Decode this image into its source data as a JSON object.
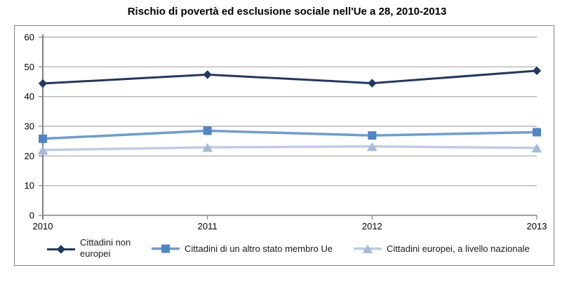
{
  "chart_data": {
    "type": "line",
    "title": "Rischio di povertà ed esclusione sociale nell'Ue a 28, 2010-2013",
    "x_labels": [
      "2010",
      "2011",
      "2012",
      "2013"
    ],
    "ylim": [
      0,
      60
    ],
    "ytick_step": 10,
    "ytick_labels": [
      "0",
      "10",
      "20",
      "30",
      "40",
      "50",
      "60"
    ],
    "grid": true,
    "legend_position": "bottom-inside",
    "series": [
      {
        "name": "Cittadini non europei",
        "marker": "diamond",
        "line_color": "#1F3864",
        "marker_color": "#1F3864",
        "line_width": 3,
        "values": [
          44.4,
          47.4,
          44.5,
          48.7
        ]
      },
      {
        "name": "Cittadini di un altro stato membro Ue",
        "marker": "square",
        "line_color": "#6C9BD9",
        "marker_color": "#4F84C8",
        "line_width": 3.5,
        "values": [
          25.8,
          28.5,
          26.9,
          28.0
        ]
      },
      {
        "name": "Cittadini europei, a livello nazionale",
        "marker": "triangle",
        "line_color": "#BCCCE8",
        "marker_color": "#A6BADC",
        "line_width": 3.5,
        "values": [
          22.0,
          22.9,
          23.2,
          22.7
        ]
      }
    ],
    "colors": {
      "gridline": "#A6A6A6",
      "axis": "#808080",
      "tick_label": "#000000",
      "chart_border": "#808080",
      "background": "#FFFFFF"
    }
  }
}
